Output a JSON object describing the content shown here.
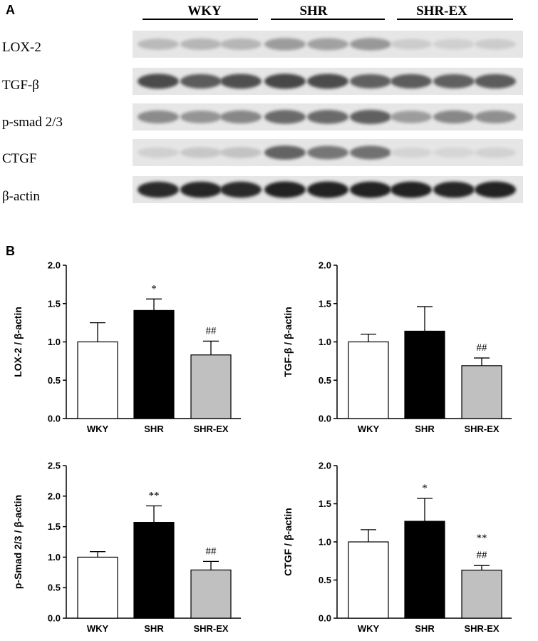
{
  "panel_a": {
    "letter": "A",
    "groups": [
      "WKY",
      "SHR",
      "SHR-EX"
    ],
    "blots": [
      {
        "label": "LOX-2",
        "intensity": [
          0.18,
          0.2,
          0.2,
          0.32,
          0.3,
          0.34,
          0.1,
          0.08,
          0.1
        ]
      },
      {
        "label": "TGF-β",
        "intensity": [
          0.7,
          0.62,
          0.68,
          0.72,
          0.7,
          0.6,
          0.62,
          0.6,
          0.62
        ]
      },
      {
        "label": "p-smad 2/3",
        "intensity": [
          0.4,
          0.36,
          0.42,
          0.55,
          0.55,
          0.6,
          0.32,
          0.42,
          0.38
        ]
      },
      {
        "label": "CTGF",
        "intensity": [
          0.08,
          0.12,
          0.14,
          0.58,
          0.5,
          0.52,
          0.06,
          0.05,
          0.07
        ]
      },
      {
        "label": "β-actin",
        "intensity": [
          0.85,
          0.86,
          0.84,
          0.9,
          0.9,
          0.88,
          0.88,
          0.86,
          0.9
        ]
      }
    ]
  },
  "panel_b": {
    "letter": "B"
  },
  "colors": {
    "WKY": "#ffffff",
    "SHR": "#000000",
    "SHR-EX": "#c0c0c0"
  },
  "chart_data": [
    {
      "type": "bar",
      "ylabel": "LOX-2 / β-actin",
      "categories": [
        "WKY",
        "SHR",
        "SHR-EX"
      ],
      "values": [
        1.0,
        1.41,
        0.83
      ],
      "errors": [
        0.25,
        0.15,
        0.18
      ],
      "annotations": [
        [
          "",
          ""
        ],
        [
          "*",
          ""
        ],
        [
          "##",
          ""
        ]
      ],
      "ylim": [
        0,
        2.0
      ],
      "yticks": [
        "0.0",
        "0.5",
        "1.0",
        "1.5",
        "2.0"
      ]
    },
    {
      "type": "bar",
      "ylabel": "TGF-β / β-actin",
      "categories": [
        "WKY",
        "SHR",
        "SHR-EX"
      ],
      "values": [
        1.0,
        1.14,
        0.69
      ],
      "errors": [
        0.1,
        0.32,
        0.1
      ],
      "annotations": [
        [
          "",
          ""
        ],
        [
          "",
          ""
        ],
        [
          "##",
          ""
        ]
      ],
      "ylim": [
        0,
        2.0
      ],
      "yticks": [
        "0.0",
        "0.5",
        "1.0",
        "1.5",
        "2.0"
      ]
    },
    {
      "type": "bar",
      "ylabel": "p-Smad 2/3 / β-actin",
      "categories": [
        "WKY",
        "SHR",
        "SHR-EX"
      ],
      "values": [
        1.0,
        1.57,
        0.79
      ],
      "errors": [
        0.09,
        0.27,
        0.14
      ],
      "annotations": [
        [
          "",
          ""
        ],
        [
          "**",
          ""
        ],
        [
          "##",
          ""
        ]
      ],
      "ylim": [
        0,
        2.5
      ],
      "yticks": [
        "0.0",
        "0.5",
        "1.0",
        "1.5",
        "2.0",
        "2.5"
      ]
    },
    {
      "type": "bar",
      "ylabel": "CTGF / β-actin",
      "categories": [
        "WKY",
        "SHR",
        "SHR-EX"
      ],
      "values": [
        1.0,
        1.27,
        0.63
      ],
      "errors": [
        0.16,
        0.3,
        0.06
      ],
      "annotations": [
        [
          "",
          ""
        ],
        [
          "*",
          ""
        ],
        [
          "**",
          "##"
        ]
      ],
      "ylim": [
        0,
        2.0
      ],
      "yticks": [
        "0.0",
        "0.5",
        "1.0",
        "1.5",
        "2.0"
      ]
    }
  ]
}
